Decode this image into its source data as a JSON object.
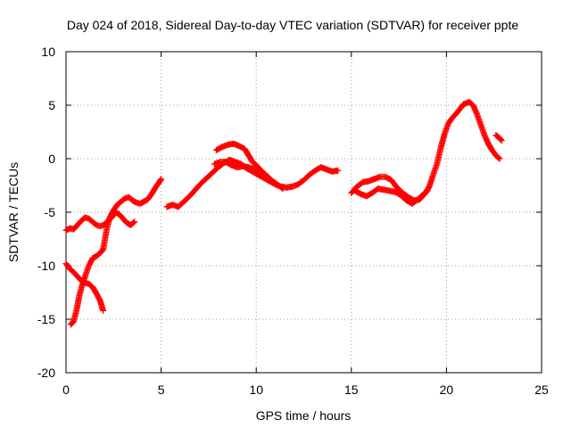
{
  "chart_data": {
    "type": "scatter",
    "title": "Day 024 of 2018, Sidereal Day-to-day VTEC variation (SDTVAR) for receiver ppte",
    "xlabel": "GPS time / hours",
    "ylabel": "SDTVAR / TECUs",
    "xlim": [
      0,
      25
    ],
    "ylim": [
      -20,
      10
    ],
    "xticks": [
      0,
      5,
      10,
      15,
      20,
      25
    ],
    "yticks": [
      -20,
      -15,
      -10,
      -5,
      0,
      5,
      10
    ],
    "xtick_labels": [
      "0",
      "5",
      "10",
      "15",
      "20",
      "25"
    ],
    "ytick_labels": [
      "-20",
      "-15",
      "-10",
      "-5",
      "0",
      "5",
      "10"
    ],
    "grid": true,
    "marker": "+",
    "series": [
      {
        "color": "#ff0000",
        "points": [
          [
            0.0,
            -6.7
          ],
          [
            0.2,
            -6.5
          ],
          [
            0.4,
            -6.6
          ],
          [
            0.6,
            -6.2
          ],
          [
            0.8,
            -5.8
          ],
          [
            1.0,
            -5.5
          ],
          [
            1.2,
            -5.6
          ],
          [
            1.4,
            -5.9
          ],
          [
            1.6,
            -6.2
          ],
          [
            1.8,
            -6.3
          ],
          [
            2.0,
            -6.2
          ],
          [
            2.2,
            -5.8
          ],
          [
            2.4,
            -5.5
          ],
          [
            2.6,
            -5.0
          ],
          [
            2.8,
            -5.2
          ],
          [
            3.0,
            -5.6
          ],
          [
            3.2,
            -6.0
          ],
          [
            3.4,
            -6.2
          ],
          [
            3.6,
            -5.9
          ]
        ]
      },
      {
        "color": "#ff0000",
        "points": [
          [
            0.0,
            -9.8
          ],
          [
            0.2,
            -10.3
          ],
          [
            0.4,
            -10.6
          ],
          [
            0.6,
            -11.0
          ],
          [
            0.8,
            -11.4
          ],
          [
            1.0,
            -11.6
          ],
          [
            1.2,
            -11.7
          ],
          [
            1.4,
            -12.0
          ],
          [
            1.6,
            -12.6
          ],
          [
            1.8,
            -13.3
          ],
          [
            1.95,
            -14.2
          ]
        ]
      },
      {
        "color": "#ff0000",
        "points": [
          [
            0.25,
            -15.5
          ],
          [
            0.4,
            -15.2
          ],
          [
            0.55,
            -14.2
          ],
          [
            0.7,
            -12.8
          ],
          [
            0.85,
            -11.8
          ],
          [
            1.0,
            -11.0
          ],
          [
            1.2,
            -10.0
          ],
          [
            1.4,
            -9.3
          ],
          [
            1.6,
            -9.1
          ],
          [
            1.8,
            -8.8
          ],
          [
            1.95,
            -8.5
          ],
          [
            2.05,
            -7.5
          ],
          [
            2.15,
            -6.5
          ],
          [
            2.3,
            -5.5
          ],
          [
            2.5,
            -4.8
          ],
          [
            2.7,
            -4.3
          ],
          [
            2.9,
            -4.0
          ],
          [
            3.1,
            -3.7
          ],
          [
            3.3,
            -3.6
          ],
          [
            3.5,
            -3.9
          ],
          [
            3.7,
            -4.1
          ],
          [
            3.9,
            -4.2
          ],
          [
            4.1,
            -4.0
          ],
          [
            4.3,
            -3.8
          ],
          [
            4.5,
            -3.3
          ],
          [
            4.7,
            -2.7
          ],
          [
            4.9,
            -2.2
          ],
          [
            5.0,
            -1.9
          ]
        ]
      },
      {
        "color": "#ff0000",
        "points": [
          [
            5.3,
            -4.5
          ],
          [
            5.6,
            -4.3
          ],
          [
            5.9,
            -4.5
          ],
          [
            6.2,
            -4.0
          ],
          [
            6.5,
            -3.5
          ],
          [
            6.8,
            -2.9
          ],
          [
            7.1,
            -2.3
          ],
          [
            7.4,
            -1.8
          ],
          [
            7.7,
            -1.3
          ],
          [
            8.0,
            -0.8
          ],
          [
            8.3,
            -0.4
          ],
          [
            8.6,
            -0.1
          ],
          [
            8.9,
            -0.3
          ],
          [
            9.2,
            -0.5
          ],
          [
            9.5,
            -0.9
          ],
          [
            9.8,
            -1.2
          ],
          [
            10.1,
            -1.5
          ],
          [
            10.4,
            -1.8
          ],
          [
            10.7,
            -2.1
          ],
          [
            11.0,
            -2.4
          ],
          [
            11.3,
            -2.6
          ],
          [
            11.6,
            -2.7
          ],
          [
            11.9,
            -2.6
          ],
          [
            12.2,
            -2.4
          ],
          [
            12.5,
            -2.0
          ],
          [
            12.8,
            -1.5
          ],
          [
            13.1,
            -1.1
          ],
          [
            13.4,
            -0.8
          ],
          [
            13.7,
            -1.0
          ],
          [
            14.0,
            -1.2
          ],
          [
            14.3,
            -1.1
          ]
        ]
      },
      {
        "color": "#ff0000",
        "points": [
          [
            7.9,
            0.8
          ],
          [
            8.2,
            1.1
          ],
          [
            8.5,
            1.3
          ],
          [
            8.8,
            1.4
          ],
          [
            9.1,
            1.2
          ],
          [
            9.4,
            0.9
          ],
          [
            9.6,
            0.3
          ],
          [
            9.8,
            -0.3
          ],
          [
            10.0,
            -0.6
          ],
          [
            10.2,
            -1.0
          ],
          [
            10.5,
            -1.5
          ],
          [
            10.8,
            -2.0
          ],
          [
            11.1,
            -2.4
          ],
          [
            11.4,
            -2.8
          ]
        ]
      },
      {
        "color": "#ff0000",
        "points": [
          [
            7.8,
            -0.5
          ],
          [
            8.1,
            -0.3
          ],
          [
            8.4,
            -0.3
          ],
          [
            8.7,
            -0.6
          ],
          [
            9.0,
            -0.8
          ],
          [
            9.3,
            -0.7
          ],
          [
            9.6,
            -0.8
          ],
          [
            9.9,
            -1.0
          ],
          [
            10.2,
            -1.3
          ]
        ]
      },
      {
        "color": "#ff0000",
        "points": [
          [
            15.0,
            -3.2
          ],
          [
            15.3,
            -2.6
          ],
          [
            15.6,
            -2.2
          ],
          [
            15.9,
            -2.1
          ],
          [
            16.2,
            -1.9
          ],
          [
            16.5,
            -1.7
          ],
          [
            16.8,
            -1.7
          ],
          [
            17.1,
            -2.0
          ],
          [
            17.4,
            -2.7
          ],
          [
            17.7,
            -3.2
          ],
          [
            18.0,
            -3.6
          ],
          [
            18.3,
            -3.9
          ],
          [
            18.6,
            -3.8
          ],
          [
            18.9,
            -3.2
          ],
          [
            19.1,
            -2.6
          ],
          [
            19.3,
            -1.5
          ],
          [
            19.5,
            -0.5
          ],
          [
            19.7,
            1.0
          ],
          [
            19.9,
            2.3
          ],
          [
            20.1,
            3.3
          ],
          [
            20.3,
            3.8
          ],
          [
            20.6,
            4.4
          ],
          [
            20.9,
            5.1
          ],
          [
            21.2,
            5.3
          ],
          [
            21.4,
            5.0
          ],
          [
            21.6,
            4.2
          ],
          [
            21.8,
            3.2
          ],
          [
            22.0,
            2.2
          ],
          [
            22.2,
            1.4
          ],
          [
            22.4,
            0.8
          ],
          [
            22.6,
            0.3
          ],
          [
            22.8,
            0.0
          ]
        ]
      },
      {
        "color": "#ff0000",
        "points": [
          [
            15.2,
            -3.0
          ],
          [
            15.5,
            -3.3
          ],
          [
            15.8,
            -3.5
          ],
          [
            16.1,
            -3.2
          ],
          [
            16.4,
            -2.8
          ],
          [
            16.7,
            -2.9
          ],
          [
            17.0,
            -3.0
          ],
          [
            17.3,
            -3.1
          ],
          [
            17.6,
            -3.4
          ],
          [
            17.9,
            -3.9
          ],
          [
            18.2,
            -4.2
          ],
          [
            18.5,
            -3.8
          ],
          [
            18.8,
            -3.3
          ],
          [
            19.0,
            -3.0
          ]
        ]
      },
      {
        "color": "#ff0000",
        "points": [
          [
            22.6,
            2.2
          ],
          [
            22.75,
            2.0
          ],
          [
            22.9,
            1.7
          ]
        ]
      }
    ]
  }
}
